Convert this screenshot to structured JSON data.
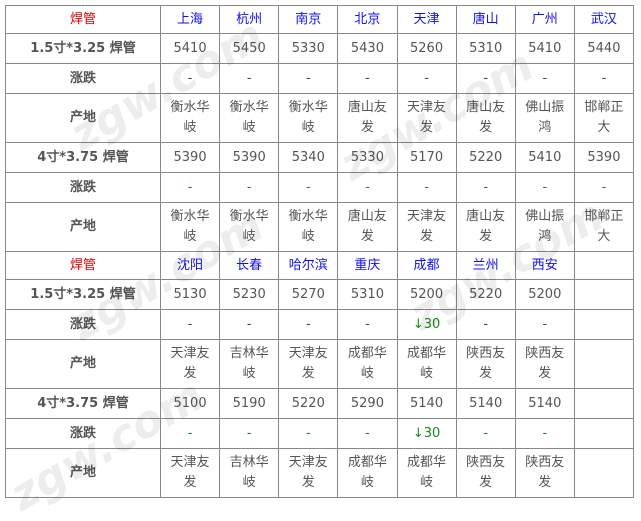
{
  "title": "焊管",
  "change_label": "涨跌",
  "origin_label": "产地",
  "sections": [
    {
      "cities": [
        "上海",
        "杭州",
        "南京",
        "北京",
        "天津",
        "唐山",
        "广州",
        "武汉"
      ],
      "products": [
        {
          "name": "1.5寸*3.25 焊管",
          "prices": [
            "5410",
            "5450",
            "5330",
            "5430",
            "5260",
            "5310",
            "5410",
            "5440"
          ],
          "changes": [
            "-",
            "-",
            "-",
            "-",
            "-",
            "-",
            "-",
            "-"
          ],
          "origins": [
            "衡水华岐",
            "衡水华岐",
            "衡水华岐",
            "唐山友发",
            "天津友发",
            "唐山友发",
            "佛山振鸿",
            "邯郸正大"
          ]
        },
        {
          "name": "4寸*3.75 焊管",
          "prices": [
            "5390",
            "5390",
            "5340",
            "5330",
            "5170",
            "5220",
            "5410",
            "5390"
          ],
          "changes": [
            "-",
            "-",
            "-",
            "-",
            "-",
            "-",
            "-",
            "-"
          ],
          "origins": [
            "衡水华岐",
            "衡水华岐",
            "衡水华岐",
            "唐山友发",
            "天津友发",
            "唐山友发",
            "佛山振鸿",
            "邯郸正大"
          ]
        }
      ]
    },
    {
      "cities": [
        "沈阳",
        "长春",
        "哈尔滨",
        "重庆",
        "成都",
        "兰州",
        "西安",
        ""
      ],
      "products": [
        {
          "name": "1.5寸*3.25 焊管",
          "prices": [
            "5130",
            "5230",
            "5270",
            "5310",
            "5200",
            "5220",
            "5200",
            ""
          ],
          "changes": [
            "-",
            "-",
            "-",
            "-",
            "↓30",
            "-",
            "-",
            ""
          ],
          "origins": [
            "天津友发",
            "吉林华岐",
            "天津友发",
            "成都华岐",
            "成都华岐",
            "陕西友发",
            "陕西友发",
            ""
          ]
        },
        {
          "name": "4寸*3.75 焊管",
          "prices": [
            "5100",
            "5190",
            "5220",
            "5290",
            "5140",
            "5140",
            "5140",
            ""
          ],
          "changes": [
            "-",
            "-",
            "-",
            "-",
            "↓30",
            "-",
            "-",
            ""
          ],
          "origins": [
            "天津友发",
            "吉林华岐",
            "天津友发",
            "成都华岐",
            "成都华岐",
            "陕西友发",
            "陕西友发",
            ""
          ]
        }
      ]
    }
  ],
  "watermark": "zgw.com 中国互联网百强企业"
}
